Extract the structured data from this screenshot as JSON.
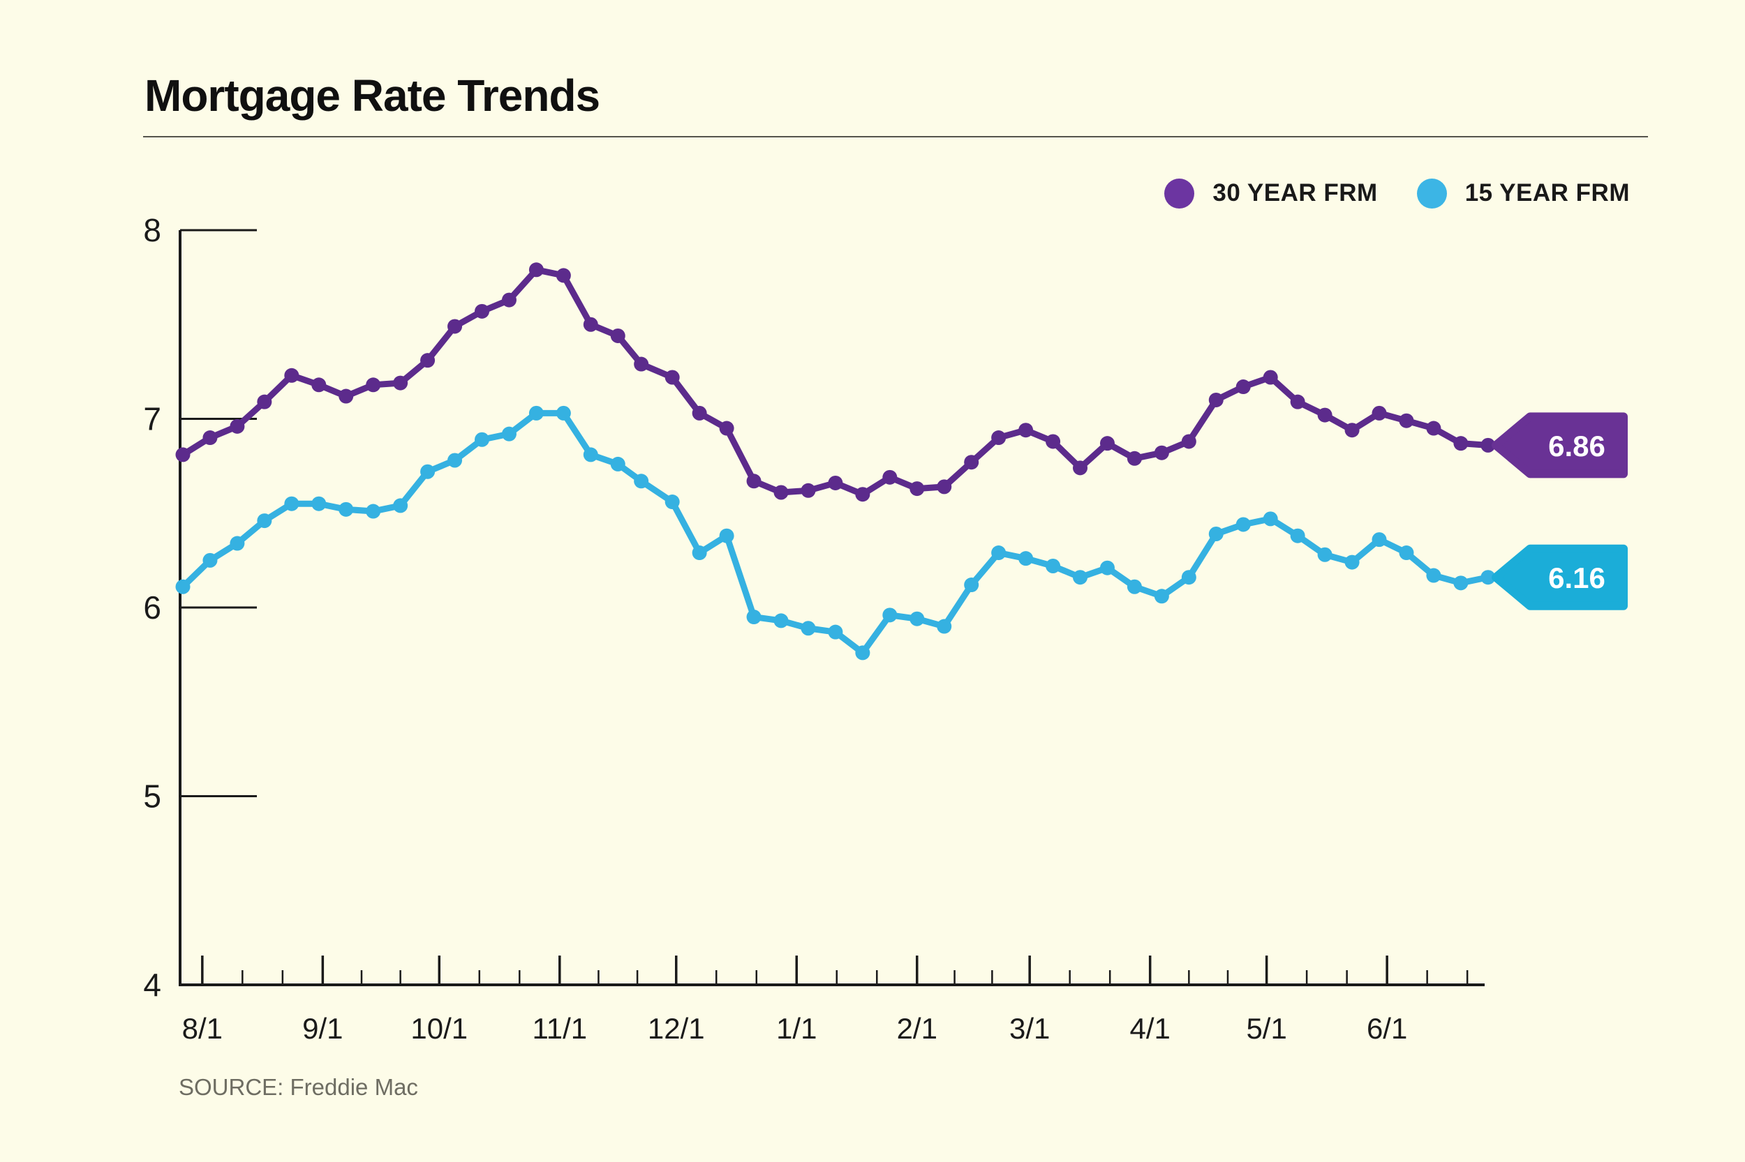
{
  "header": {
    "title": "Mortgage Rate Trends"
  },
  "legend": [
    {
      "label": "30 YEAR FRM",
      "color": "#6c35a1"
    },
    {
      "label": "15 YEAR FRM",
      "color": "#3cb5e5"
    }
  ],
  "source": {
    "text": "SOURCE: Freddie Mac"
  },
  "colors": {
    "background": "#fdfce8",
    "axis_ink": "#1a1a1a",
    "divider": "#55544c",
    "source_text": "#6e6d62"
  },
  "chart_data": {
    "type": "line",
    "title": "Mortgage Rate Trends",
    "xlabel": "",
    "ylabel": "",
    "ylim": [
      4,
      8
    ],
    "grid": false,
    "legend_position": "top-right",
    "y_ticks": [
      8,
      7,
      6,
      5,
      4
    ],
    "x_ticks": [
      "8/1",
      "9/1",
      "10/1",
      "11/1",
      "12/1",
      "1/1",
      "2/1",
      "3/1",
      "4/1",
      "5/1",
      "6/1"
    ],
    "x": [
      "7/27",
      "8/3",
      "8/10",
      "8/17",
      "8/24",
      "8/31",
      "9/7",
      "9/14",
      "9/21",
      "9/28",
      "10/5",
      "10/12",
      "10/19",
      "10/26",
      "11/2",
      "11/9",
      "11/16",
      "11/22",
      "11/30",
      "12/7",
      "12/14",
      "12/21",
      "12/28",
      "1/4",
      "1/11",
      "1/18",
      "1/25",
      "2/1",
      "2/8",
      "2/15",
      "2/22",
      "2/29",
      "3/7",
      "3/14",
      "3/21",
      "3/28",
      "4/4",
      "4/11",
      "4/18",
      "4/25",
      "5/2",
      "5/9",
      "5/16",
      "5/23",
      "5/30",
      "6/6",
      "6/13",
      "6/20",
      "6/27"
    ],
    "series": [
      {
        "name": "30 YEAR FRM",
        "color": "#5c2b8c",
        "tag_color": "#693295",
        "end_label": "6.86",
        "values": [
          6.81,
          6.9,
          6.96,
          7.09,
          7.23,
          7.18,
          7.12,
          7.18,
          7.19,
          7.31,
          7.49,
          7.57,
          7.63,
          7.79,
          7.76,
          7.5,
          7.44,
          7.29,
          7.22,
          7.03,
          6.95,
          6.67,
          6.61,
          6.62,
          6.66,
          6.6,
          6.69,
          6.63,
          6.64,
          6.77,
          6.9,
          6.94,
          6.88,
          6.74,
          6.87,
          6.79,
          6.82,
          6.88,
          7.1,
          7.17,
          7.22,
          7.09,
          7.02,
          6.94,
          7.03,
          6.99,
          6.95,
          6.87,
          6.86
        ]
      },
      {
        "name": "15 YEAR FRM",
        "color": "#35b1e1",
        "tag_color": "#1badd8",
        "end_label": "6.16",
        "values": [
          6.11,
          6.25,
          6.34,
          6.46,
          6.55,
          6.55,
          6.52,
          6.51,
          6.54,
          6.72,
          6.78,
          6.89,
          6.92,
          7.03,
          7.03,
          6.81,
          6.76,
          6.67,
          6.56,
          6.29,
          6.38,
          5.95,
          5.93,
          5.89,
          5.87,
          5.76,
          5.96,
          5.94,
          5.9,
          6.12,
          6.29,
          6.26,
          6.22,
          6.16,
          6.21,
          6.11,
          6.06,
          6.16,
          6.39,
          6.44,
          6.47,
          6.38,
          6.28,
          6.24,
          6.36,
          6.29,
          6.17,
          6.13,
          6.16
        ]
      }
    ],
    "source": "SOURCE: Freddie Mac"
  }
}
